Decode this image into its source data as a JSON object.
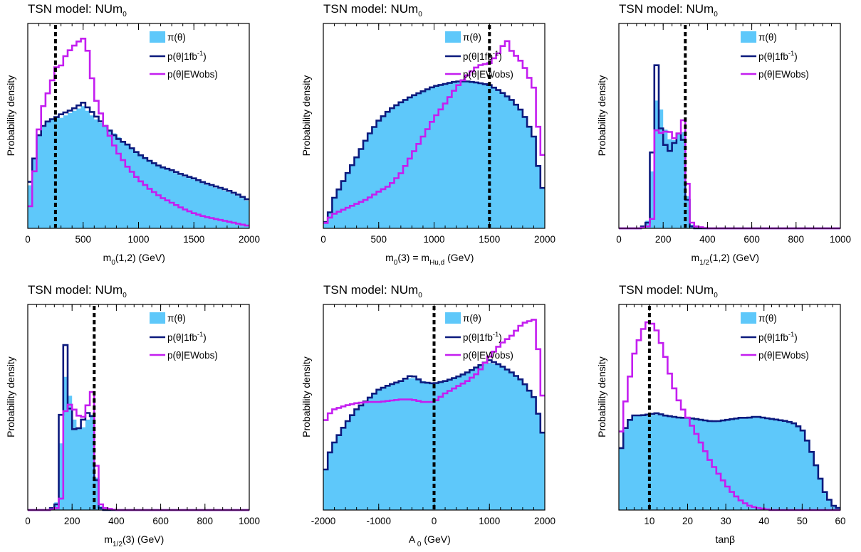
{
  "figure_title": "TSN model: NUm",
  "title_subscript": "0",
  "legend": {
    "prior": "π(θ)",
    "post1_main": "p(θ|1fb",
    "post1_sup": "-1",
    "post1_end": ")",
    "post2": "p(θ|EWobs)"
  },
  "colors": {
    "prior": "#5ec8fa",
    "post1": "#0c1a7d",
    "post2": "#c41ef0",
    "benchmark": "#000000"
  },
  "ylabel": "Probability density",
  "chart_data": [
    {
      "type": "area",
      "title": "TSN model: NUm0",
      "xlabel_parts": [
        [
          "m",
          ""
        ],
        [
          "0",
          "sub"
        ],
        [
          "(1,2) (GeV)",
          ""
        ]
      ],
      "xlim": [
        0,
        2000
      ],
      "xticks": [
        0,
        500,
        1000,
        1500,
        2000
      ],
      "benchmark_x": 250,
      "series": [
        {
          "name": "π(θ)",
          "x": [
            0,
            50,
            100,
            150,
            200,
            250,
            300,
            400,
            500,
            600,
            700,
            800,
            900,
            1000,
            1100,
            1200,
            1300,
            1400,
            1500,
            1600,
            1700,
            1800,
            1900,
            2000
          ],
          "y": [
            0.25,
            0.55,
            0.8,
            0.9,
            0.93,
            0.95,
            0.95,
            1.0,
            1.05,
            0.95,
            0.88,
            0.8,
            0.72,
            0.64,
            0.58,
            0.53,
            0.49,
            0.45,
            0.42,
            0.38,
            0.35,
            0.32,
            0.28,
            0.23
          ]
        },
        {
          "name": "p(θ|1fb-1)",
          "x": [
            0,
            50,
            100,
            150,
            200,
            250,
            300,
            400,
            500,
            600,
            700,
            800,
            900,
            1000,
            1100,
            1200,
            1300,
            1400,
            1500,
            1600,
            1700,
            1800,
            1900,
            2000
          ],
          "y": [
            0.3,
            0.55,
            0.8,
            0.9,
            0.93,
            0.95,
            0.98,
            1.02,
            1.08,
            0.98,
            0.88,
            0.78,
            0.72,
            0.64,
            0.58,
            0.53,
            0.5,
            0.46,
            0.43,
            0.39,
            0.36,
            0.33,
            0.29,
            0.24
          ]
        },
        {
          "name": "p(θ|EWobs)",
          "x": [
            0,
            50,
            100,
            150,
            200,
            250,
            300,
            350,
            400,
            450,
            500,
            550,
            600,
            700,
            800,
            900,
            1000,
            1100,
            1200,
            1300,
            1400,
            1500,
            1600,
            1700,
            1800,
            1900,
            2000
          ],
          "y": [
            0.05,
            0.4,
            0.85,
            1.1,
            1.2,
            1.38,
            1.4,
            1.5,
            1.55,
            1.6,
            1.63,
            1.5,
            1.15,
            0.88,
            0.67,
            0.53,
            0.42,
            0.34,
            0.27,
            0.22,
            0.17,
            0.13,
            0.1,
            0.08,
            0.06,
            0.04,
            0.02
          ]
        }
      ]
    },
    {
      "type": "area",
      "title": "TSN model: NUm0",
      "xlabel_parts": [
        [
          "m",
          ""
        ],
        [
          "0",
          "sub"
        ],
        [
          "(3) = m",
          ""
        ],
        [
          "Hu,d",
          "sub"
        ],
        [
          " (GeV)",
          ""
        ]
      ],
      "xlim": [
        0,
        2000
      ],
      "xticks": [
        0,
        500,
        1000,
        1500,
        2000
      ],
      "benchmark_x": 1500,
      "series": [
        {
          "name": "π(θ)",
          "x": [
            0,
            50,
            100,
            200,
            300,
            400,
            500,
            600,
            700,
            800,
            900,
            1000,
            1100,
            1200,
            1300,
            1400,
            1500,
            1600,
            1700,
            1800,
            1900,
            1950,
            2000
          ],
          "y": [
            0.02,
            0.1,
            0.25,
            0.42,
            0.58,
            0.75,
            0.88,
            0.97,
            1.03,
            1.08,
            1.12,
            1.16,
            1.18,
            1.2,
            1.2,
            1.19,
            1.17,
            1.12,
            1.05,
            0.95,
            0.75,
            0.45,
            0.25
          ]
        },
        {
          "name": "p(θ|1fb-1)",
          "x": [
            0,
            50,
            100,
            200,
            300,
            400,
            500,
            600,
            700,
            800,
            900,
            1000,
            1100,
            1200,
            1300,
            1400,
            1500,
            1600,
            1700,
            1800,
            1900,
            1950,
            2000
          ],
          "y": [
            0.02,
            0.1,
            0.25,
            0.42,
            0.58,
            0.75,
            0.88,
            0.97,
            1.03,
            1.08,
            1.12,
            1.16,
            1.18,
            1.2,
            1.2,
            1.19,
            1.17,
            1.12,
            1.05,
            0.95,
            0.75,
            0.45,
            0.25
          ]
        },
        {
          "name": "p(θ|EWobs)",
          "x": [
            0,
            50,
            100,
            200,
            300,
            400,
            500,
            600,
            700,
            800,
            900,
            1000,
            1100,
            1200,
            1300,
            1400,
            1500,
            1600,
            1650,
            1700,
            1800,
            1900,
            1950,
            2000
          ],
          "y": [
            0.02,
            0.08,
            0.12,
            0.16,
            0.2,
            0.24,
            0.3,
            0.35,
            0.45,
            0.6,
            0.75,
            0.9,
            1.02,
            1.15,
            1.25,
            1.33,
            1.35,
            1.45,
            1.55,
            1.45,
            1.35,
            1.15,
            0.75,
            0.5
          ]
        }
      ]
    },
    {
      "type": "area",
      "title": "TSN model: NUm0",
      "xlabel_parts": [
        [
          "m",
          ""
        ],
        [
          "1/2",
          "sub"
        ],
        [
          "(1,2) (GeV)",
          ""
        ]
      ],
      "xlim": [
        0,
        1000
      ],
      "xticks": [
        0,
        200,
        400,
        600,
        800,
        1000
      ],
      "benchmark_x": 300,
      "series": [
        {
          "name": "π(θ)",
          "x": [
            0,
            100,
            130,
            150,
            165,
            180,
            195,
            215,
            240,
            260,
            280,
            295,
            315,
            330,
            350,
            400,
            500,
            1000
          ],
          "y": [
            0,
            0,
            0.04,
            0.3,
            0.65,
            0.72,
            0.58,
            0.5,
            0.45,
            0.48,
            0.52,
            0.5,
            0.06,
            0.02,
            0,
            0,
            0,
            0
          ]
        },
        {
          "name": "p(θ|1fb-1)",
          "x": [
            0,
            100,
            130,
            150,
            165,
            180,
            195,
            215,
            240,
            260,
            280,
            295,
            315,
            330,
            350,
            400,
            500,
            1000
          ],
          "y": [
            0,
            0,
            0.03,
            0.4,
            1.0,
            0.58,
            0.5,
            0.42,
            0.4,
            0.5,
            0.5,
            0.45,
            0.05,
            0.01,
            0,
            0,
            0,
            0
          ]
        },
        {
          "name": "p(θ|EWobs)",
          "x": [
            0,
            100,
            130,
            150,
            165,
            180,
            195,
            215,
            240,
            260,
            280,
            295,
            315,
            330,
            350,
            400,
            500,
            1000
          ],
          "y": [
            0,
            0,
            0.01,
            0.05,
            0.5,
            0.55,
            0.48,
            0.52,
            0.5,
            0.45,
            0.55,
            0.58,
            0.12,
            0.03,
            0.01,
            0,
            0,
            0
          ]
        }
      ]
    },
    {
      "type": "area",
      "title": "TSN model: NUm0",
      "xlabel_parts": [
        [
          "m",
          ""
        ],
        [
          "1/2",
          "sub"
        ],
        [
          "(3) (GeV)",
          ""
        ]
      ],
      "xlim": [
        0,
        1000
      ],
      "xticks": [
        0,
        200,
        400,
        600,
        800,
        1000
      ],
      "benchmark_x": 300,
      "series": [
        {
          "name": "π(θ)",
          "x": [
            0,
            100,
            130,
            150,
            165,
            180,
            195,
            215,
            240,
            260,
            280,
            295,
            315,
            330,
            350,
            400,
            500,
            1000
          ],
          "y": [
            0,
            0,
            0.04,
            0.35,
            0.7,
            0.7,
            0.55,
            0.45,
            0.42,
            0.45,
            0.5,
            0.5,
            0.06,
            0.02,
            0,
            0,
            0,
            0
          ]
        },
        {
          "name": "p(θ|1fb-1)",
          "x": [
            0,
            100,
            130,
            150,
            165,
            180,
            195,
            215,
            240,
            260,
            280,
            295,
            315,
            330,
            350,
            400,
            500,
            1000
          ],
          "y": [
            0,
            0,
            0.03,
            0.5,
            1.0,
            0.6,
            0.5,
            0.4,
            0.45,
            0.5,
            0.52,
            0.48,
            0.05,
            0.01,
            0,
            0,
            0,
            0
          ]
        },
        {
          "name": "p(θ|EWobs)",
          "x": [
            0,
            100,
            130,
            150,
            165,
            180,
            195,
            215,
            240,
            260,
            280,
            295,
            315,
            330,
            350,
            400,
            500,
            1000
          ],
          "y": [
            0,
            0,
            0.01,
            0.06,
            0.5,
            0.56,
            0.55,
            0.52,
            0.48,
            0.5,
            0.6,
            0.63,
            0.1,
            0.03,
            0.01,
            0,
            0,
            0
          ]
        }
      ]
    },
    {
      "type": "area",
      "title": "TSN model: NUm0",
      "xlabel_parts": [
        [
          "A",
          ""
        ],
        [
          " 0",
          "sub"
        ],
        [
          " (GeV)",
          ""
        ]
      ],
      "xlim": [
        -2000,
        2000
      ],
      "xticks": [
        -2000,
        -1000,
        0,
        1000,
        2000
      ],
      "benchmark_x": 0,
      "series": [
        {
          "name": "π(θ)",
          "x": [
            -2000,
            -1900,
            -1800,
            -1600,
            -1400,
            -1200,
            -1000,
            -800,
            -600,
            -400,
            -200,
            0,
            200,
            400,
            600,
            800,
            1000,
            1200,
            1400,
            1600,
            1800,
            1900,
            2000
          ],
          "y": [
            0.25,
            0.45,
            0.55,
            0.7,
            0.82,
            0.9,
            0.98,
            1.02,
            1.05,
            1.08,
            1.05,
            1.03,
            1.05,
            1.08,
            1.12,
            1.17,
            1.2,
            1.18,
            1.12,
            1.05,
            0.92,
            0.75,
            0.55
          ]
        },
        {
          "name": "p(θ|1fb-1)",
          "x": [
            -2000,
            -1900,
            -1800,
            -1600,
            -1400,
            -1200,
            -1000,
            -800,
            -600,
            -400,
            -200,
            0,
            200,
            400,
            600,
            800,
            1000,
            1200,
            1400,
            1600,
            1800,
            1900,
            2000
          ],
          "y": [
            0.25,
            0.45,
            0.55,
            0.7,
            0.82,
            0.9,
            0.98,
            1.02,
            1.05,
            1.1,
            1.04,
            1.03,
            1.05,
            1.08,
            1.12,
            1.17,
            1.22,
            1.18,
            1.12,
            1.05,
            0.92,
            0.75,
            0.55
          ]
        },
        {
          "name": "p(θ|EWobs)",
          "x": [
            -2000,
            -1900,
            -1800,
            -1600,
            -1400,
            -1200,
            -1000,
            -800,
            -600,
            -400,
            -200,
            0,
            200,
            400,
            600,
            800,
            1000,
            1200,
            1400,
            1600,
            1800,
            1900,
            2000
          ],
          "y": [
            0.7,
            0.78,
            0.82,
            0.85,
            0.87,
            0.88,
            0.88,
            0.89,
            0.9,
            0.9,
            0.88,
            0.88,
            0.95,
            1.0,
            1.05,
            1.12,
            1.25,
            1.35,
            1.42,
            1.52,
            1.55,
            1.25,
            0.72
          ]
        }
      ]
    },
    {
      "type": "area",
      "title": "TSN model: NUm0",
      "xlabel_parts": [
        [
          "tanβ",
          ""
        ]
      ],
      "xlim": [
        2,
        60
      ],
      "xticks": [
        10,
        20,
        30,
        40,
        50,
        60
      ],
      "benchmark_x": 10,
      "series": [
        {
          "name": "π(θ)",
          "x": [
            2,
            4,
            6,
            8,
            10,
            12,
            14,
            16,
            18,
            20,
            22,
            24,
            26,
            28,
            30,
            32,
            34,
            36,
            38,
            40,
            42,
            44,
            46,
            48,
            50,
            52,
            54,
            56,
            58,
            60
          ],
          "y": [
            0.45,
            0.75,
            0.82,
            0.82,
            0.82,
            0.83,
            0.82,
            0.81,
            0.8,
            0.8,
            0.79,
            0.78,
            0.77,
            0.77,
            0.78,
            0.79,
            0.8,
            0.8,
            0.8,
            0.8,
            0.79,
            0.78,
            0.77,
            0.75,
            0.7,
            0.55,
            0.35,
            0.15,
            0.04,
            0.01
          ]
        },
        {
          "name": "p(θ|1fb-1)",
          "x": [
            2,
            4,
            6,
            8,
            10,
            12,
            14,
            16,
            18,
            20,
            22,
            24,
            26,
            28,
            30,
            32,
            34,
            36,
            38,
            40,
            42,
            44,
            46,
            48,
            50,
            52,
            54,
            56,
            58,
            60
          ],
          "y": [
            0.45,
            0.75,
            0.82,
            0.82,
            0.83,
            0.84,
            0.82,
            0.81,
            0.8,
            0.8,
            0.79,
            0.78,
            0.77,
            0.77,
            0.78,
            0.79,
            0.8,
            0.8,
            0.81,
            0.8,
            0.79,
            0.78,
            0.77,
            0.75,
            0.7,
            0.55,
            0.35,
            0.15,
            0.04,
            0.01
          ]
        },
        {
          "name": "p(θ|EWobs)",
          "x": [
            2,
            4,
            6,
            8,
            10,
            12,
            14,
            16,
            18,
            20,
            22,
            24,
            26,
            28,
            30,
            32,
            34,
            36,
            38,
            40,
            42,
            44,
            46,
            48,
            50,
            52,
            54,
            56,
            58,
            60
          ],
          "y": [
            0.55,
            1.0,
            1.35,
            1.55,
            1.65,
            1.55,
            1.35,
            1.1,
            0.92,
            0.8,
            0.68,
            0.55,
            0.42,
            0.32,
            0.22,
            0.14,
            0.08,
            0.04,
            0.02,
            0.01,
            0,
            0,
            0,
            0,
            0,
            0,
            0,
            0,
            0,
            0
          ]
        }
      ]
    }
  ]
}
